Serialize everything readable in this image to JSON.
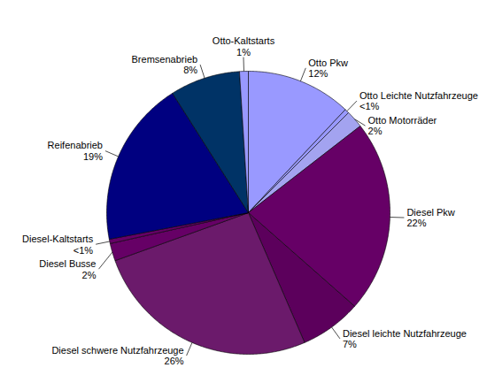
{
  "chart_data": {
    "type": "pie",
    "categories": [
      "Otto Pkw",
      "Otto Leichte Nutzfahrzeuge",
      "Otto Motorräder",
      "Diesel Pkw",
      "Diesel leichte Nutzfahrzeuge",
      "Diesel schwere Nutzfahrzeuge",
      "Diesel Busse",
      "Diesel-Kaltstarts",
      "Reifenabrieb",
      "Bremsenabrieb",
      "Otto-Kaltstarts"
    ],
    "values": [
      12,
      0.5,
      2,
      22,
      7,
      26,
      2,
      0.5,
      19,
      8,
      1
    ],
    "value_labels": [
      "12%",
      "<1%",
      "2%",
      "22%",
      "7%",
      "26%",
      "2%",
      "<1%",
      "19%",
      "8%",
      "1%"
    ],
    "colors": [
      "#9999ff",
      "#9999ff",
      "#a3a3f0",
      "#660066",
      "#5c005c",
      "#6b1a6b",
      "#660066",
      "#660066",
      "#000080",
      "#003366",
      "#9999ff"
    ],
    "data_labels": true
  }
}
